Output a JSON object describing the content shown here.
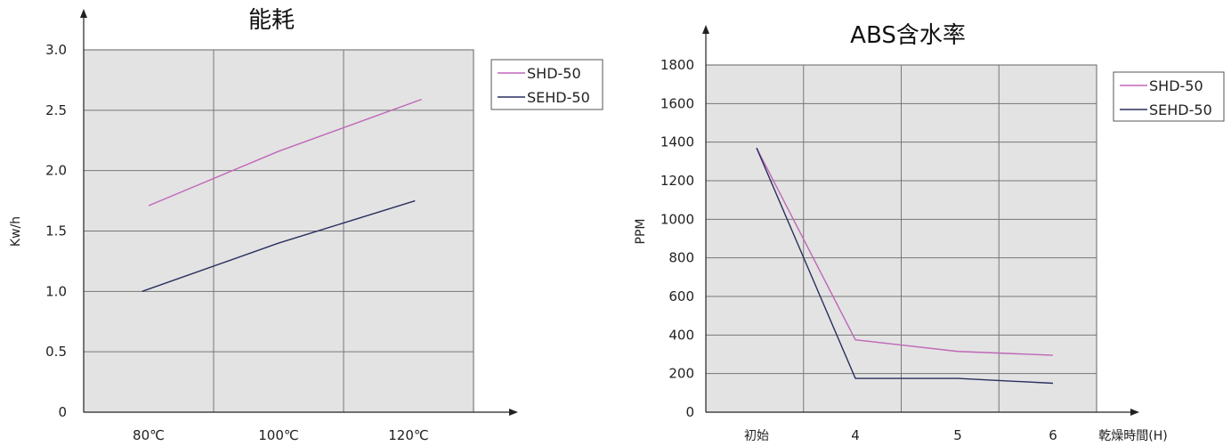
{
  "chart_data": [
    {
      "type": "line",
      "title": "能耗",
      "ylabel": "Kw/h",
      "xlabel": "",
      "categories": [
        "80℃",
        "100℃",
        "120℃"
      ],
      "x_positions": [
        80,
        100,
        120
      ],
      "xlim": [
        70,
        130
      ],
      "ylim": [
        0,
        3.0
      ],
      "yticks": [
        "0",
        "0.5",
        "1.0",
        "1.5",
        "2.0",
        "2.5",
        "3.0"
      ],
      "grid": true,
      "legend_position": "right",
      "series": [
        {
          "name": "SHD-50",
          "color": "#c066b8",
          "x": [
            80,
            100,
            122
          ],
          "values": [
            1.71,
            2.16,
            2.59
          ]
        },
        {
          "name": "SEHD-50",
          "color": "#2a2f5e",
          "x": [
            79,
            100,
            121
          ],
          "values": [
            1.0,
            1.4,
            1.75
          ]
        }
      ]
    },
    {
      "type": "line",
      "title": "ABS含水率",
      "ylabel": "PPM",
      "xlabel": "乾燥時間(H)",
      "categories": [
        "初始",
        "4",
        "5",
        "6"
      ],
      "ylim": [
        0,
        1800
      ],
      "yticks": [
        "0",
        "200",
        "400",
        "600",
        "800",
        "1000",
        "1200",
        "1400",
        "1600",
        "1800"
      ],
      "grid": true,
      "legend_position": "right",
      "series": [
        {
          "name": "SHD-50",
          "color": "#c066b8",
          "values": [
            1370,
            375,
            315,
            295
          ]
        },
        {
          "name": "SEHD-50",
          "color": "#2a2f5e",
          "values": [
            1370,
            175,
            175,
            150
          ]
        }
      ]
    }
  ]
}
